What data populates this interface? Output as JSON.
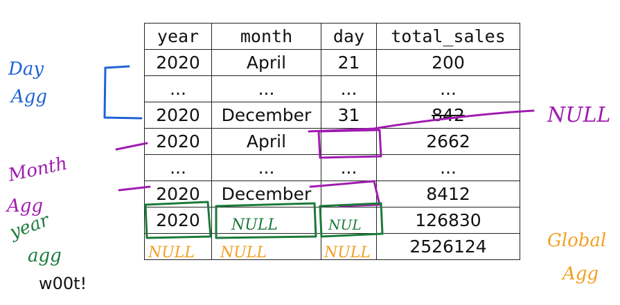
{
  "table": {
    "columns": [
      "year",
      "month",
      "day",
      "total_sales"
    ],
    "rows": [
      [
        "2020",
        "April",
        "21",
        "200"
      ],
      [
        "...",
        "...",
        "...",
        "..."
      ],
      [
        "2020",
        "December",
        "31",
        "842"
      ],
      [
        "2020",
        "April",
        "",
        "2662"
      ],
      [
        "...",
        "...",
        "...",
        "..."
      ],
      [
        "2020",
        "December",
        "",
        "8412"
      ],
      [
        "2020",
        "",
        "",
        "126830"
      ],
      [
        "",
        "",
        "",
        "2526124"
      ]
    ]
  },
  "annotations": {
    "day_agg": [
      "Day",
      "Agg"
    ],
    "month_agg": [
      "Month",
      "Agg"
    ],
    "year_agg": [
      "year",
      "agg"
    ],
    "global_agg": [
      "Global",
      "Agg"
    ],
    "null_label": "NULL",
    "year_null": "NULL",
    "year_row_day_null": "NUL",
    "global_null_year": "NULL",
    "global_null_month": "NULL",
    "global_null_day": "NULL",
    "footer_note": "w00t!"
  },
  "colors": {
    "blue": "#1e63d6",
    "purple": "#a01cb0",
    "green": "#1a7a3a",
    "orange": "#f2a024"
  }
}
